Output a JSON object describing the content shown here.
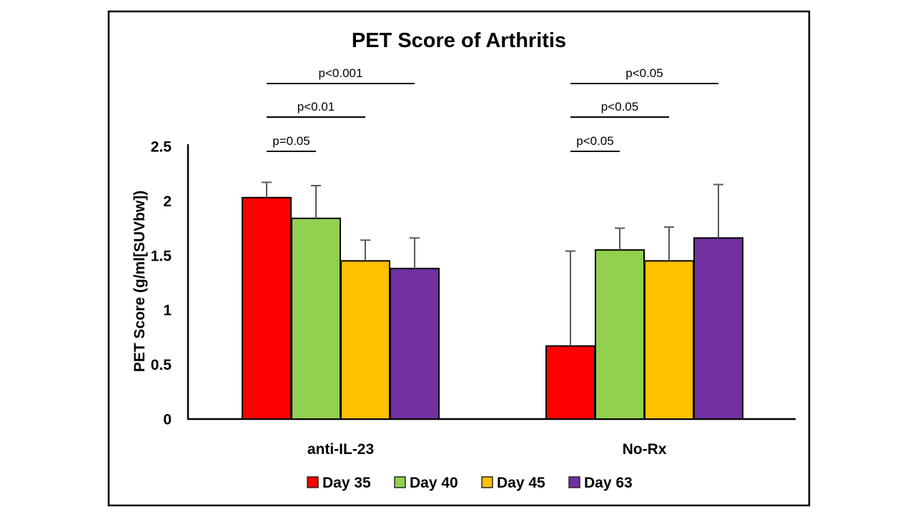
{
  "figure": {
    "title": "PET Score of Arthritis"
  },
  "chart_data": {
    "type": "bar",
    "title": "PET Score of Arthritis",
    "xlabel": "",
    "ylabel": "PET Score (g/ml[SUVbw])",
    "ylim": [
      0,
      2.5
    ],
    "yticks": [
      0,
      0.5,
      1,
      1.5,
      2,
      2.5
    ],
    "ytick_labels": [
      "0",
      "0.5",
      "1",
      "1.5",
      "2",
      "2.5"
    ],
    "grid": false,
    "legend_position": "bottom-center",
    "categories": [
      "anti-IL-23",
      "No-Rx"
    ],
    "series": [
      {
        "name": "Day 35",
        "color": "#FF0000",
        "values": [
          2.03,
          0.67
        ],
        "errors": [
          0.14,
          0.87
        ]
      },
      {
        "name": "Day 40",
        "color": "#92D050",
        "values": [
          1.84,
          1.55
        ],
        "errors": [
          0.3,
          0.2
        ]
      },
      {
        "name": "Day 45",
        "color": "#FFC000",
        "values": [
          1.45,
          1.45
        ],
        "errors": [
          0.19,
          0.31
        ]
      },
      {
        "name": "Day 63",
        "color": "#7030A0",
        "values": [
          1.38,
          1.66
        ],
        "errors": [
          0.28,
          0.49
        ]
      }
    ],
    "significance": [
      {
        "group": 0,
        "from": 0,
        "to": 1,
        "label": "p=0.05",
        "level": 1
      },
      {
        "group": 0,
        "from": 0,
        "to": 2,
        "label": "p<0.01",
        "level": 2
      },
      {
        "group": 0,
        "from": 0,
        "to": 3,
        "label": "p<0.001",
        "level": 3
      },
      {
        "group": 1,
        "from": 0,
        "to": 1,
        "label": "p<0.05",
        "level": 1
      },
      {
        "group": 1,
        "from": 0,
        "to": 2,
        "label": "p<0.05",
        "level": 2
      },
      {
        "group": 1,
        "from": 0,
        "to": 3,
        "label": "p<0.05",
        "level": 3
      }
    ],
    "error_bar_color": "#595959",
    "bar_border_color": "#000000",
    "axis_color": "#000000",
    "frame_border_color": "#000000",
    "background_color": "#FFFFFF"
  }
}
